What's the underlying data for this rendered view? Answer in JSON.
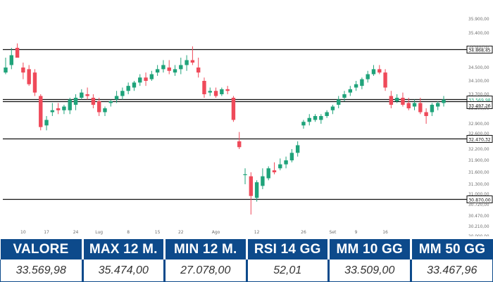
{
  "colors": {
    "up": "#1fa37a",
    "down": "#ef4a5a",
    "header_bg": "#0d4a8b",
    "header_text": "#ffffff",
    "value_text": "#333333",
    "level_line": "#111111",
    "axis_text": "#6b6b6b"
  },
  "chart_data": {
    "type": "candlestick",
    "title": "",
    "ylim": [
      20000,
      36200
    ],
    "y_tick_labels": [
      "35.900,00",
      "35.400,00",
      "34.900,00",
      "34.500,00",
      "34.100,00",
      "33.700,00",
      "33.300,00",
      "32.900,00",
      "32.600,00",
      "32.200,00",
      "31.900,00",
      "31.600,00",
      "31.300,00",
      "31.000,00",
      "30.720,00",
      "30.470,00",
      "30.210,00",
      "20.000,00"
    ],
    "y_tick_values": [
      35900,
      35400,
      34900,
      34500,
      34100,
      33700,
      33300,
      32900,
      32600,
      32200,
      31900,
      31600,
      31300,
      31000,
      30720,
      30470,
      30210,
      20000
    ],
    "x_tick_labels": [
      {
        "label": "10",
        "index": 3
      },
      {
        "label": "17",
        "index": 7
      },
      {
        "label": "24",
        "index": 12
      },
      {
        "label": "Lug",
        "index": 16
      },
      {
        "label": "8",
        "index": 21
      },
      {
        "label": "15",
        "index": 26
      },
      {
        "label": "22",
        "index": 30
      },
      {
        "label": "Ago",
        "index": 36
      },
      {
        "label": "12",
        "index": 43
      },
      {
        "label": "26",
        "index": 51
      },
      {
        "label": "Set",
        "index": 56
      },
      {
        "label": "9",
        "index": 60
      },
      {
        "label": "16",
        "index": 65
      }
    ],
    "price_levels": [
      {
        "label": "34.868,45",
        "value": 34868.45
      },
      {
        "label": "33.569,98",
        "value": 33569.98,
        "highlight": true
      },
      {
        "label": "33.497,26",
        "value": 33497.26
      },
      {
        "label": "32.470,32",
        "value": 32470.32
      },
      {
        "label": "30.870,00",
        "value": 30870
      }
    ],
    "candles": [
      {
        "o": 34350,
        "h": 34700,
        "l": 34300,
        "c": 34500
      },
      {
        "o": 34550,
        "h": 34900,
        "l": 34450,
        "c": 34750
      },
      {
        "o": 34900,
        "h": 35050,
        "l": 34800,
        "c": 34700
      },
      {
        "o": 34500,
        "h": 34600,
        "l": 34150,
        "c": 34350
      },
      {
        "o": 34450,
        "h": 34550,
        "l": 33950,
        "c": 34000
      },
      {
        "o": 34350,
        "h": 34450,
        "l": 33650,
        "c": 33750
      },
      {
        "o": 33650,
        "h": 33700,
        "l": 32700,
        "c": 32800
      },
      {
        "o": 32850,
        "h": 33100,
        "l": 32700,
        "c": 33000
      },
      {
        "o": 33200,
        "h": 33450,
        "l": 33100,
        "c": 33250
      },
      {
        "o": 33300,
        "h": 33450,
        "l": 33150,
        "c": 33250
      },
      {
        "o": 33250,
        "h": 33400,
        "l": 33150,
        "c": 33350
      },
      {
        "o": 33250,
        "h": 33600,
        "l": 33150,
        "c": 33550
      },
      {
        "o": 33400,
        "h": 33700,
        "l": 33250,
        "c": 33600
      },
      {
        "o": 33600,
        "h": 33850,
        "l": 33550,
        "c": 33750
      },
      {
        "o": 33700,
        "h": 33900,
        "l": 33550,
        "c": 33650
      },
      {
        "o": 33600,
        "h": 33700,
        "l": 33300,
        "c": 33400
      },
      {
        "o": 33500,
        "h": 33600,
        "l": 33100,
        "c": 33200
      },
      {
        "o": 33200,
        "h": 33350,
        "l": 33100,
        "c": 33300
      },
      {
        "o": 33450,
        "h": 33550,
        "l": 33350,
        "c": 33500
      },
      {
        "o": 33550,
        "h": 33800,
        "l": 33450,
        "c": 33650
      },
      {
        "o": 33650,
        "h": 33900,
        "l": 33550,
        "c": 33800
      },
      {
        "o": 33800,
        "h": 34050,
        "l": 33700,
        "c": 33950
      },
      {
        "o": 33900,
        "h": 34100,
        "l": 33800,
        "c": 34050
      },
      {
        "o": 34050,
        "h": 34300,
        "l": 33950,
        "c": 34200
      },
      {
        "o": 34200,
        "h": 34350,
        "l": 33950,
        "c": 34100
      },
      {
        "o": 34150,
        "h": 34400,
        "l": 34100,
        "c": 34300
      },
      {
        "o": 34350,
        "h": 34550,
        "l": 34250,
        "c": 34450
      },
      {
        "o": 34450,
        "h": 34650,
        "l": 34350,
        "c": 34550
      },
      {
        "o": 34500,
        "h": 34650,
        "l": 34300,
        "c": 34400
      },
      {
        "o": 34350,
        "h": 34550,
        "l": 34250,
        "c": 34450
      },
      {
        "o": 34450,
        "h": 34700,
        "l": 34300,
        "c": 34550
      },
      {
        "o": 34550,
        "h": 34750,
        "l": 34400,
        "c": 34650
      },
      {
        "o": 34650,
        "h": 34950,
        "l": 34550,
        "c": 34600
      },
      {
        "o": 34500,
        "h": 34700,
        "l": 34200,
        "c": 34350
      },
      {
        "o": 34100,
        "h": 34200,
        "l": 33600,
        "c": 33700
      },
      {
        "o": 33750,
        "h": 33900,
        "l": 33650,
        "c": 33800
      },
      {
        "o": 33800,
        "h": 33900,
        "l": 33600,
        "c": 33650
      },
      {
        "o": 33700,
        "h": 33900,
        "l": 33650,
        "c": 33850
      },
      {
        "o": 33850,
        "h": 33950,
        "l": 33700,
        "c": 33800
      },
      {
        "o": 33600,
        "h": 33650,
        "l": 32950,
        "c": 33000
      },
      {
        "o": 32400,
        "h": 32650,
        "l": 32200,
        "c": 32250
      },
      {
        "o": 31550,
        "h": 31700,
        "l": 31300,
        "c": 31550
      },
      {
        "o": 31500,
        "h": 31600,
        "l": 30500,
        "c": 30950
      },
      {
        "o": 30900,
        "h": 31400,
        "l": 30800,
        "c": 31350
      },
      {
        "o": 31250,
        "h": 31700,
        "l": 31150,
        "c": 31500
      },
      {
        "o": 31450,
        "h": 31750,
        "l": 31400,
        "c": 31700
      },
      {
        "o": 31650,
        "h": 31850,
        "l": 31550,
        "c": 31600
      },
      {
        "o": 31700,
        "h": 31950,
        "l": 31650,
        "c": 31800
      },
      {
        "o": 31800,
        "h": 32000,
        "l": 31700,
        "c": 31900
      },
      {
        "o": 31900,
        "h": 32200,
        "l": 31850,
        "c": 32100
      },
      {
        "o": 32100,
        "h": 32400,
        "l": 32000,
        "c": 32300
      },
      {
        "o": 32850,
        "h": 33000,
        "l": 32750,
        "c": 32950
      },
      {
        "o": 32950,
        "h": 33150,
        "l": 32850,
        "c": 33050
      },
      {
        "o": 33000,
        "h": 33150,
        "l": 32950,
        "c": 33100
      },
      {
        "o": 33000,
        "h": 33150,
        "l": 32900,
        "c": 33100
      },
      {
        "o": 33100,
        "h": 33250,
        "l": 33050,
        "c": 33200
      },
      {
        "o": 33250,
        "h": 33400,
        "l": 33150,
        "c": 33350
      },
      {
        "o": 33400,
        "h": 33650,
        "l": 33300,
        "c": 33550
      },
      {
        "o": 33600,
        "h": 33800,
        "l": 33500,
        "c": 33700
      },
      {
        "o": 33750,
        "h": 33950,
        "l": 33650,
        "c": 33850
      },
      {
        "o": 33900,
        "h": 34100,
        "l": 33800,
        "c": 34000
      },
      {
        "o": 33950,
        "h": 34200,
        "l": 33850,
        "c": 34150
      },
      {
        "o": 34150,
        "h": 34400,
        "l": 34050,
        "c": 34300
      },
      {
        "o": 34300,
        "h": 34550,
        "l": 34250,
        "c": 34450
      },
      {
        "o": 34450,
        "h": 34550,
        "l": 34300,
        "c": 34350
      },
      {
        "o": 34350,
        "h": 34450,
        "l": 33800,
        "c": 33900
      },
      {
        "o": 33650,
        "h": 33800,
        "l": 33300,
        "c": 33400
      },
      {
        "o": 33500,
        "h": 33700,
        "l": 33450,
        "c": 33600
      },
      {
        "o": 33600,
        "h": 33750,
        "l": 33350,
        "c": 33400
      },
      {
        "o": 33450,
        "h": 33600,
        "l": 33250,
        "c": 33300
      },
      {
        "o": 33350,
        "h": 33550,
        "l": 33250,
        "c": 33450
      },
      {
        "o": 33450,
        "h": 33600,
        "l": 33150,
        "c": 33200
      },
      {
        "o": 33200,
        "h": 33300,
        "l": 32900,
        "c": 33100
      },
      {
        "o": 33200,
        "h": 33450,
        "l": 33100,
        "c": 33400
      },
      {
        "o": 33350,
        "h": 33500,
        "l": 33250,
        "c": 33450
      },
      {
        "o": 33450,
        "h": 33650,
        "l": 33350,
        "c": 33550
      }
    ]
  },
  "stats": {
    "headers": [
      "VALORE",
      "MAX 12 M.",
      "MIN 12 M.",
      "RSI 14 GG",
      "MM 10 GG",
      "MM 50 GG"
    ],
    "values": [
      "33.569,98",
      "35.474,00",
      "27.078,00",
      "52,01",
      "33.509,00",
      "33.467,96"
    ]
  }
}
